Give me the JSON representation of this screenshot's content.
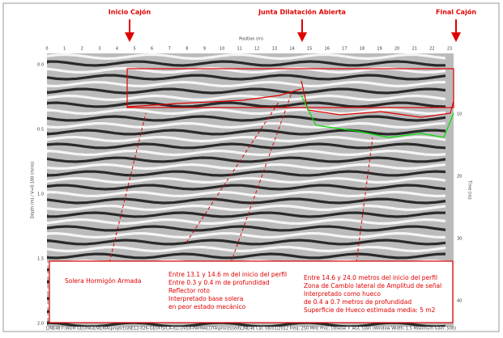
{
  "header": {
    "labels": [
      "Inicio Cajón",
      "Junta Dilatación Abierta",
      "Final Cajón"
    ]
  },
  "axes": {
    "top_title": "Position (m)",
    "top_ticks": [
      "0",
      "1",
      "2",
      "3",
      "4",
      "5",
      "6",
      "7",
      "8",
      "9",
      "10",
      "11",
      "12",
      "13",
      "14",
      "15",
      "16",
      "17",
      "18",
      "19",
      "20",
      "21",
      "22",
      "23"
    ],
    "left_title": "Depth (m) / V=0.100 (m/ns)",
    "left_ticks": [
      "0.0",
      "0.5",
      "1.0",
      "1.5",
      "2.0"
    ],
    "right_title": "Time (ns)",
    "right_ticks": [
      "10",
      "20",
      "30",
      "40"
    ]
  },
  "annotations": {
    "left": [
      "Solera Hormigón Armada"
    ],
    "middle": [
      "Entre 13.1 y 14.6 m del inicio del perfil",
      "Entre 0.3 y 0.4 m de profundidad",
      "Reflector roto",
      "Interpretado base solera",
      "en peor estado mecánico"
    ],
    "right": [
      "Entre 14.6 y 24.0 metros del inicio del perfil",
      "Zona de Cambio lateral de Amplitud de señal",
      "Interpretado como hueco",
      "de 0.4 a 0.7 metros de profundidad",
      "Superficie de Hueco estimada media: 5 m2"
    ]
  },
  "footer": "LINE48  F:\\NGH GEOINGENIERIA\\projects\\NE12-026-GEOFISICA-eLCOVER-PAYMACOTA\\processed\\LINE48  Cal: 08/01/2012  Freq: 250 MHz  Proc: Dewow + AGC Gain (Window Width: 1.5 Maximum Gain: 500)"
}
